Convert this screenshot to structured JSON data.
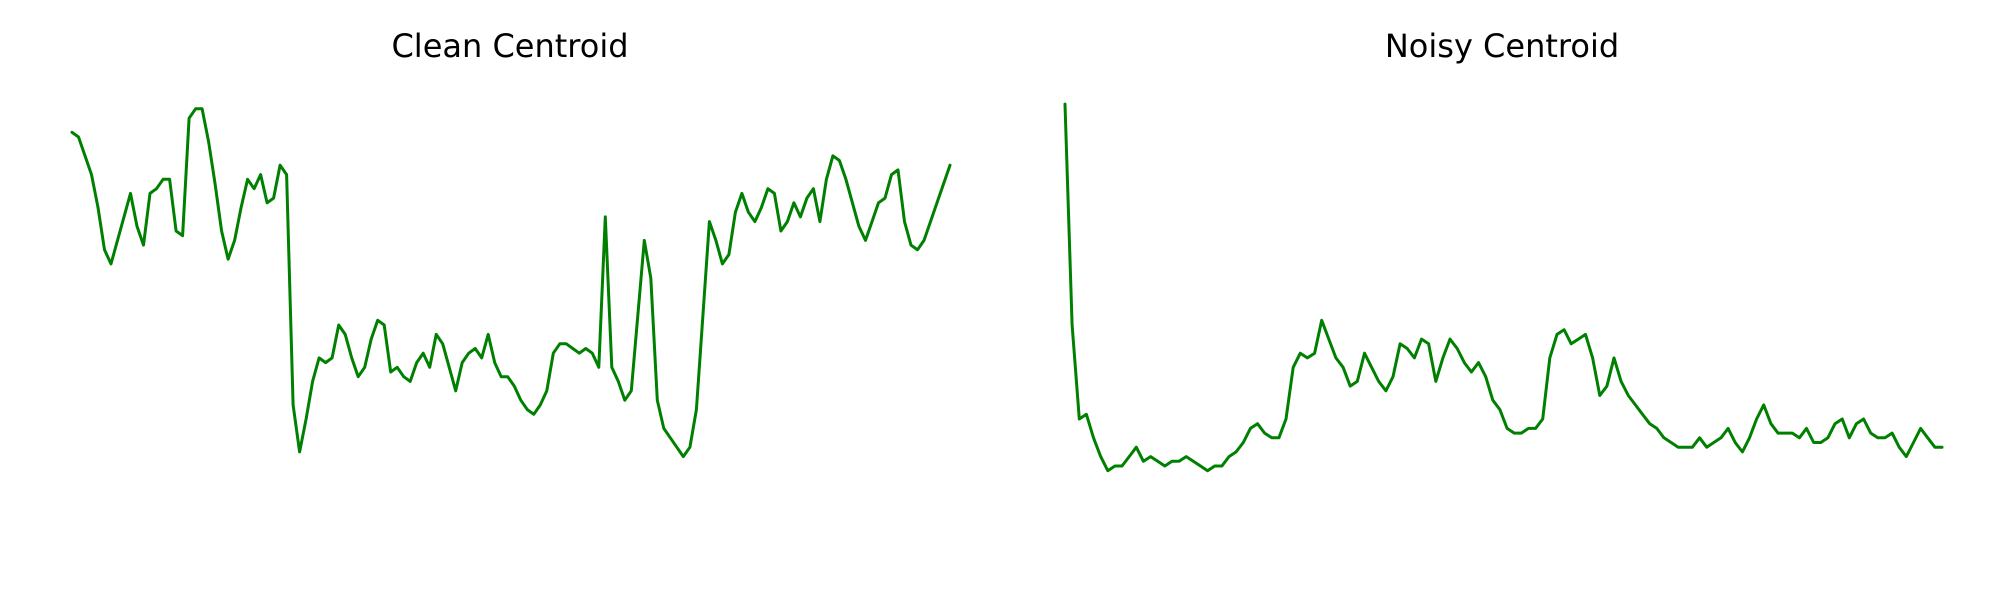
{
  "series_color": "#008000",
  "chart_data": [
    {
      "type": "line",
      "title": "Clean Centroid",
      "xlabel": "",
      "ylabel": "",
      "grid": false,
      "axes_visible": false,
      "ylim": [
        0,
        1
      ],
      "values": [
        0.91,
        0.9,
        0.86,
        0.82,
        0.75,
        0.66,
        0.63,
        0.68,
        0.73,
        0.78,
        0.71,
        0.67,
        0.78,
        0.79,
        0.81,
        0.81,
        0.7,
        0.69,
        0.94,
        0.96,
        0.96,
        0.89,
        0.8,
        0.7,
        0.64,
        0.68,
        0.75,
        0.81,
        0.79,
        0.82,
        0.76,
        0.77,
        0.84,
        0.82,
        0.33,
        0.23,
        0.3,
        0.38,
        0.43,
        0.42,
        0.43,
        0.5,
        0.48,
        0.43,
        0.39,
        0.41,
        0.47,
        0.51,
        0.5,
        0.4,
        0.41,
        0.39,
        0.38,
        0.42,
        0.44,
        0.41,
        0.48,
        0.46,
        0.41,
        0.36,
        0.42,
        0.44,
        0.45,
        0.43,
        0.48,
        0.42,
        0.39,
        0.39,
        0.37,
        0.34,
        0.32,
        0.31,
        0.33,
        0.36,
        0.44,
        0.46,
        0.46,
        0.45,
        0.44,
        0.45,
        0.44,
        0.41,
        0.73,
        0.41,
        0.38,
        0.34,
        0.36,
        0.52,
        0.68,
        0.6,
        0.34,
        0.28,
        0.26,
        0.24,
        0.22,
        0.24,
        0.32,
        0.52,
        0.72,
        0.68,
        0.63,
        0.65,
        0.74,
        0.78,
        0.74,
        0.72,
        0.75,
        0.79,
        0.78,
        0.7,
        0.72,
        0.76,
        0.73,
        0.77,
        0.79,
        0.72,
        0.81,
        0.86,
        0.85,
        0.81,
        0.76,
        0.71,
        0.68,
        0.72,
        0.76,
        0.77,
        0.82,
        0.83,
        0.72,
        0.67,
        0.66,
        0.68,
        0.72,
        0.76,
        0.8,
        0.84
      ]
    },
    {
      "type": "line",
      "title": "Noisy Centroid",
      "xlabel": "",
      "ylabel": "",
      "grid": false,
      "axes_visible": false,
      "ylim": [
        0,
        1
      ],
      "values": [
        0.97,
        0.5,
        0.3,
        0.31,
        0.26,
        0.22,
        0.19,
        0.2,
        0.2,
        0.22,
        0.24,
        0.21,
        0.22,
        0.21,
        0.2,
        0.21,
        0.21,
        0.22,
        0.21,
        0.2,
        0.19,
        0.2,
        0.2,
        0.22,
        0.23,
        0.25,
        0.28,
        0.29,
        0.27,
        0.26,
        0.26,
        0.3,
        0.41,
        0.44,
        0.43,
        0.44,
        0.51,
        0.47,
        0.43,
        0.41,
        0.37,
        0.38,
        0.44,
        0.41,
        0.38,
        0.36,
        0.39,
        0.46,
        0.45,
        0.43,
        0.47,
        0.46,
        0.38,
        0.43,
        0.47,
        0.45,
        0.42,
        0.4,
        0.42,
        0.39,
        0.34,
        0.32,
        0.28,
        0.27,
        0.27,
        0.28,
        0.28,
        0.3,
        0.43,
        0.48,
        0.49,
        0.46,
        0.47,
        0.48,
        0.43,
        0.35,
        0.37,
        0.43,
        0.38,
        0.35,
        0.33,
        0.31,
        0.29,
        0.28,
        0.26,
        0.25,
        0.24,
        0.24,
        0.24,
        0.26,
        0.24,
        0.25,
        0.26,
        0.28,
        0.25,
        0.23,
        0.26,
        0.3,
        0.33,
        0.29,
        0.27,
        0.27,
        0.27,
        0.26,
        0.28,
        0.25,
        0.25,
        0.26,
        0.29,
        0.3,
        0.26,
        0.29,
        0.3,
        0.27,
        0.26,
        0.26,
        0.27,
        0.24,
        0.22,
        0.25,
        0.28,
        0.26,
        0.24,
        0.24
      ]
    }
  ]
}
